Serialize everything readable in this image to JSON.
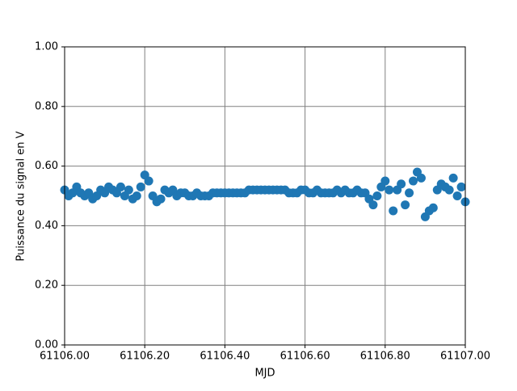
{
  "chart_data": {
    "type": "scatter",
    "xlabel": "MJD",
    "ylabel": "Puissance du signal en V",
    "xlim": [
      61106.0,
      61107.0
    ],
    "ylim": [
      0,
      1
    ],
    "xticks": [
      {
        "value": 61106.0,
        "label": "61106.00"
      },
      {
        "value": 61106.2,
        "label": "61106.20"
      },
      {
        "value": 61106.4,
        "label": "61106.40"
      },
      {
        "value": 61106.6,
        "label": "61106.60"
      },
      {
        "value": 61106.8,
        "label": "61106.80"
      },
      {
        "value": 61107.0,
        "label": "61107.00"
      }
    ],
    "yticks": [
      {
        "value": 0,
        "label": "0.00"
      },
      {
        "value": 0.2,
        "label": "0.20"
      },
      {
        "value": 0.4,
        "label": "0.40"
      },
      {
        "value": 0.6,
        "label": "0.60"
      },
      {
        "value": 0.8,
        "label": "0.80"
      },
      {
        "value": 1,
        "label": "1.00"
      }
    ],
    "grid": true,
    "grid_color": "#808080",
    "series": [
      {
        "color": "#1f77b4",
        "x": [
          61106.0,
          61106.01,
          61106.02,
          61106.03,
          61106.04,
          61106.05,
          61106.06,
          61106.07,
          61106.08,
          61106.09,
          61106.1,
          61106.11,
          61106.12,
          61106.13,
          61106.14,
          61106.15,
          61106.16,
          61106.17,
          61106.18,
          61106.19,
          61106.2,
          61106.21,
          61106.22,
          61106.23,
          61106.24,
          61106.25,
          61106.26,
          61106.27,
          61106.28,
          61106.29,
          61106.3,
          61106.31,
          61106.32,
          61106.33,
          61106.34,
          61106.35,
          61106.36,
          61106.37,
          61106.38,
          61106.39,
          61106.4,
          61106.41,
          61106.42,
          61106.43,
          61106.44,
          61106.45,
          61106.46,
          61106.47,
          61106.48,
          61106.49,
          61106.5,
          61106.51,
          61106.52,
          61106.53,
          61106.54,
          61106.55,
          61106.56,
          61106.57,
          61106.58,
          61106.59,
          61106.6,
          61106.61,
          61106.62,
          61106.63,
          61106.64,
          61106.65,
          61106.66,
          61106.67,
          61106.68,
          61106.69,
          61106.7,
          61106.71,
          61106.72,
          61106.73,
          61106.74,
          61106.75,
          61106.76,
          61106.77,
          61106.78,
          61106.79,
          61106.8,
          61106.81,
          61106.82,
          61106.83,
          61106.84,
          61106.85,
          61106.86,
          61106.87,
          61106.88,
          61106.89,
          61106.9,
          61106.91,
          61106.92,
          61106.93,
          61106.94,
          61106.95,
          61106.96,
          61106.97,
          61106.98,
          61106.99,
          61107.0
        ],
        "values": [
          0.52,
          0.5,
          0.51,
          0.53,
          0.51,
          0.5,
          0.51,
          0.49,
          0.5,
          0.52,
          0.51,
          0.53,
          0.52,
          0.51,
          0.53,
          0.5,
          0.52,
          0.49,
          0.5,
          0.53,
          0.57,
          0.55,
          0.5,
          0.48,
          0.49,
          0.52,
          0.51,
          0.52,
          0.5,
          0.51,
          0.51,
          0.5,
          0.5,
          0.51,
          0.5,
          0.5,
          0.5,
          0.51,
          0.51,
          0.51,
          0.51,
          0.51,
          0.51,
          0.51,
          0.51,
          0.51,
          0.52,
          0.52,
          0.52,
          0.52,
          0.52,
          0.52,
          0.52,
          0.52,
          0.52,
          0.52,
          0.51,
          0.51,
          0.51,
          0.52,
          0.52,
          0.51,
          0.51,
          0.52,
          0.51,
          0.51,
          0.51,
          0.51,
          0.52,
          0.51,
          0.52,
          0.51,
          0.51,
          0.52,
          0.51,
          0.51,
          0.49,
          0.47,
          0.5,
          0.53,
          0.55,
          0.52,
          0.45,
          0.52,
          0.54,
          0.47,
          0.51,
          0.55,
          0.58,
          0.56,
          0.43,
          0.45,
          0.46,
          0.52,
          0.54,
          0.53,
          0.52,
          0.56,
          0.5,
          0.53,
          0.48
        ]
      }
    ]
  }
}
